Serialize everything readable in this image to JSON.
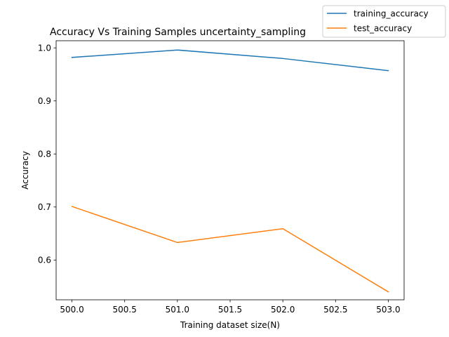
{
  "chart_data": {
    "type": "line",
    "title": "Accuracy Vs Training Samples  uncertainty_sampling",
    "xlabel": "Training dataset size(N)",
    "ylabel": "Accuracy",
    "x": [
      500,
      501,
      502,
      503
    ],
    "xlim": [
      499.85,
      503.15
    ],
    "ylim": [
      0.525,
      1.0135
    ],
    "xticks": [
      500.0,
      500.5,
      501.0,
      501.5,
      502.0,
      502.5,
      503.0
    ],
    "xtick_labels": [
      "500.0",
      "500.5",
      "501.0",
      "501.5",
      "502.0",
      "502.5",
      "503.0"
    ],
    "yticks": [
      0.6,
      0.7,
      0.8,
      0.9,
      1.0
    ],
    "ytick_labels": [
      "0.6",
      "0.7",
      "0.8",
      "0.9",
      "1.0"
    ],
    "grid": false,
    "legend_position": "top-right",
    "series": [
      {
        "name": "training_accuracy",
        "color": "#1f77b4",
        "values": [
          0.982,
          0.996,
          0.98,
          0.957
        ]
      },
      {
        "name": "test_accuracy",
        "color": "#ff7f0e",
        "values": [
          0.701,
          0.633,
          0.659,
          0.54
        ]
      }
    ]
  }
}
